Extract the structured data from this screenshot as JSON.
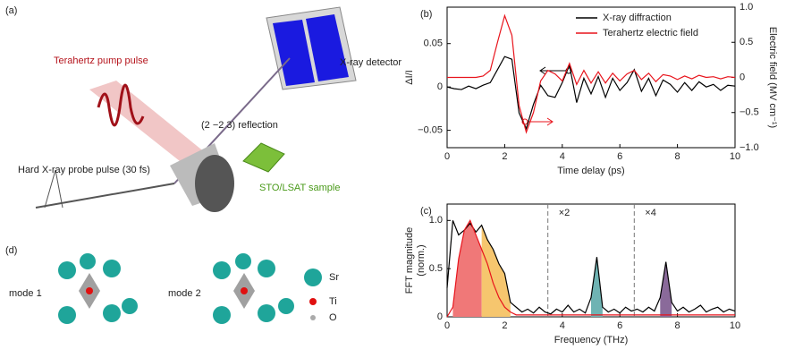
{
  "panels": {
    "a": {
      "label": "(a)",
      "pump": "Terahertz pump pulse",
      "detector": "X-ray detector",
      "reflection": "(2 −2 3) reflection",
      "probe": "Hard X-ray probe pulse (30 fs)",
      "sample": "STO/LSAT sample"
    },
    "d": {
      "label": "(d)",
      "mode1": "mode 1",
      "mode2": "mode 2",
      "sr": "Sr",
      "ti": "Ti",
      "o": "O"
    }
  },
  "chart_data": [
    {
      "type": "line",
      "panel_label": "(b)",
      "xlabel": "Time delay (ps)",
      "ylabel": "ΔI/I",
      "y2label": "Electric field (MV cm⁻¹)",
      "x": [
        0,
        0.25,
        0.5,
        0.75,
        1,
        1.25,
        1.5,
        1.75,
        2,
        2.25,
        2.5,
        2.75,
        3,
        3.25,
        3.5,
        3.75,
        4,
        4.25,
        4.5,
        4.75,
        5,
        5.25,
        5.5,
        5.75,
        6,
        6.25,
        6.5,
        6.75,
        7,
        7.25,
        7.5,
        7.75,
        8,
        8.25,
        8.5,
        8.75,
        9,
        9.25,
        9.5,
        9.75,
        10
      ],
      "series": [
        {
          "name": "X-ray diffraction",
          "color": "#000000",
          "values": [
            0,
            -0.002,
            -0.003,
            0.001,
            -0.002,
            0.002,
            0.005,
            0.02,
            0.035,
            0.032,
            -0.03,
            -0.048,
            -0.02,
            0.002,
            -0.01,
            -0.012,
            0.005,
            0.025,
            -0.018,
            0.01,
            -0.008,
            0.012,
            -0.012,
            0.01,
            -0.004,
            0.005,
            0.02,
            -0.005,
            0.01,
            -0.01,
            0.008,
            0.003,
            -0.006,
            0.005,
            -0.004,
            0.006,
            0,
            0.003,
            -0.004,
            0.002,
            0.001
          ]
        },
        {
          "name": "Terahertz electric field",
          "color": "#e8141c",
          "axis": "y2",
          "values": [
            0,
            0,
            0,
            0,
            0,
            0.02,
            0.1,
            0.5,
            0.88,
            0.6,
            -0.4,
            -0.78,
            -0.5,
            -0.05,
            0.1,
            0.05,
            -0.05,
            0.2,
            -0.1,
            0.1,
            -0.08,
            0.08,
            -0.08,
            0.06,
            -0.05,
            0.05,
            0.1,
            -0.03,
            0.06,
            -0.06,
            0.04,
            0.02,
            -0.03,
            0.02,
            -0.02,
            0.03,
            0,
            0.01,
            -0.02,
            0.01,
            0
          ]
        }
      ],
      "xlim": [
        0,
        10
      ],
      "xticks": [
        0,
        2,
        4,
        6,
        8,
        10
      ],
      "ylim": [
        -0.07,
        0.092
      ],
      "yticks": [
        {
          "value": -0.05,
          "label": "−0.05"
        },
        0,
        0.05
      ],
      "y2lim": [
        -1.0,
        1.0
      ],
      "y2ticks": [
        {
          "value": -1.0,
          "label": "−1.0"
        },
        {
          "value": -0.5,
          "label": "−0.5"
        },
        0,
        0.5,
        {
          "value": 1.0,
          "label": "1.0"
        }
      ],
      "legend": "upper right"
    },
    {
      "type": "line",
      "panel_label": "(c)",
      "xlabel": "Frequency (THz)",
      "ylabel": [
        "FFT magnitude",
        "(norm.)"
      ],
      "x": [
        0,
        0.2,
        0.4,
        0.6,
        0.8,
        1,
        1.2,
        1.4,
        1.6,
        1.8,
        2,
        2.2,
        2.4,
        2.6,
        2.8,
        3,
        3.2,
        3.4,
        3.6,
        3.8,
        4,
        4.2,
        4.4,
        4.6,
        4.8,
        5,
        5.2,
        5.4,
        5.6,
        5.8,
        6,
        6.2,
        6.4,
        6.6,
        6.8,
        7,
        7.2,
        7.4,
        7.6,
        7.8,
        8,
        8.2,
        8.4,
        8.6,
        8.8,
        9,
        9.2,
        9.4,
        9.6,
        9.8,
        10
      ],
      "series": [
        {
          "color": "#000000",
          "values": [
            0.3,
            1.0,
            0.85,
            0.9,
            0.97,
            0.88,
            0.95,
            0.8,
            0.7,
            0.55,
            0.45,
            0.15,
            0.1,
            0.05,
            0.08,
            0.04,
            0.1,
            0.05,
            0.03,
            0.08,
            0.05,
            0.12,
            0.05,
            0.08,
            0.04,
            0.2,
            0.62,
            0.1,
            0.05,
            0.08,
            0.04,
            0.1,
            0.06,
            0.08,
            0.05,
            0.1,
            0.06,
            0.2,
            0.57,
            0.15,
            0.06,
            0.1,
            0.05,
            0.08,
            0.12,
            0.05,
            0.08,
            0.1,
            0.05,
            0.08,
            0.06
          ]
        },
        {
          "color": "#e8141c",
          "values": [
            0,
            0.1,
            0.6,
            0.9,
            1.0,
            0.85,
            0.7,
            0.55,
            0.35,
            0.2,
            0.1,
            0.05,
            0.02,
            0.02,
            0.02,
            0.02,
            0.02,
            0.02,
            0.02,
            0.02,
            0.02,
            0.02,
            0.02,
            0.02,
            0.02,
            0.02,
            0.02,
            0.02,
            0.02,
            0.02,
            0.02,
            0.02,
            0.02,
            0.02,
            0.02,
            0.02,
            0.02,
            0.02,
            0.02,
            0.02,
            0.02,
            0.02,
            0.02,
            0.02,
            0.02,
            0.02,
            0.02,
            0.02,
            0.02,
            0.02,
            0.02
          ]
        }
      ],
      "fills": [
        {
          "series": 1,
          "from": 1,
          "to": 6,
          "color": "#f07878"
        },
        {
          "series": 0,
          "from": 6,
          "to": 11,
          "color": "#f6c66e"
        },
        {
          "series": 0,
          "from": 25,
          "to": 27,
          "color": "#6fb3b3"
        },
        {
          "series": 0,
          "from": 37,
          "to": 39,
          "color": "#8a6a9a"
        }
      ],
      "dividers": [
        3.5,
        6.5
      ],
      "annotations": [
        "×2",
        "×4"
      ],
      "xlim": [
        0,
        10
      ],
      "xticks": [
        0,
        2,
        4,
        6,
        8,
        10
      ],
      "ylim": [
        0,
        1.17
      ],
      "yticks": [
        0,
        0.5,
        {
          "value": 1.0,
          "label": "1.0"
        }
      ]
    }
  ]
}
